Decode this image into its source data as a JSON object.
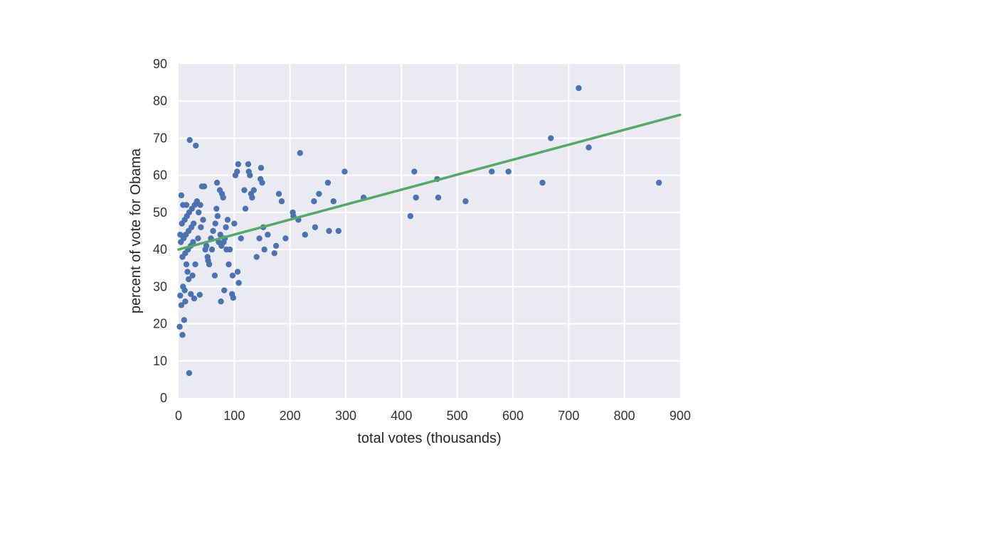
{
  "chart_data": {
    "type": "scatter",
    "title": "",
    "xlabel": "total votes (thousands)",
    "ylabel": "percent of vote for Obama",
    "xlim": [
      0,
      900
    ],
    "ylim": [
      0,
      90
    ],
    "xticks": [
      "0",
      "100",
      "200",
      "300",
      "400",
      "500",
      "600",
      "700",
      "800",
      "900"
    ],
    "yticks": [
      "0",
      "10",
      "20",
      "30",
      "40",
      "50",
      "60",
      "70",
      "80",
      "90"
    ],
    "grid": true,
    "colors": {
      "background": "#eaeaf2",
      "grid": "#ffffff",
      "points": "#4c72b0",
      "fit_line": "#55a868"
    },
    "series": [
      {
        "type": "scatter",
        "points": [
          [
            2,
            19.2
          ],
          [
            5,
            54.6
          ],
          [
            7,
            17
          ],
          [
            10,
            21
          ],
          [
            19,
            6.7
          ],
          [
            20,
            69.5
          ],
          [
            31,
            68
          ],
          [
            28,
            26.8
          ],
          [
            12,
            26
          ],
          [
            5,
            25
          ],
          [
            3,
            27.6
          ],
          [
            38,
            27.8
          ],
          [
            8,
            30
          ],
          [
            11,
            29
          ],
          [
            22,
            28
          ],
          [
            18,
            32
          ],
          [
            16,
            34
          ],
          [
            25,
            33
          ],
          [
            14,
            36
          ],
          [
            30,
            36
          ],
          [
            7,
            38
          ],
          [
            12,
            39
          ],
          [
            17,
            40
          ],
          [
            22,
            41
          ],
          [
            26,
            42
          ],
          [
            4,
            42
          ],
          [
            9,
            43
          ],
          [
            13,
            44
          ],
          [
            18,
            45
          ],
          [
            23,
            46
          ],
          [
            27,
            47
          ],
          [
            6,
            47
          ],
          [
            11,
            48
          ],
          [
            15,
            49
          ],
          [
            19,
            50
          ],
          [
            24,
            51
          ],
          [
            29,
            52
          ],
          [
            8,
            52
          ],
          [
            14,
            52
          ],
          [
            3,
            44
          ],
          [
            35,
            43
          ],
          [
            40,
            46
          ],
          [
            44,
            48
          ],
          [
            36,
            50
          ],
          [
            33,
            53
          ],
          [
            42,
            57
          ],
          [
            46,
            57
          ],
          [
            39,
            52
          ],
          [
            48,
            40
          ],
          [
            52,
            38
          ],
          [
            55,
            36
          ],
          [
            50,
            41
          ],
          [
            53,
            37
          ],
          [
            58,
            43
          ],
          [
            62,
            45
          ],
          [
            60,
            40
          ],
          [
            65,
            33
          ],
          [
            66,
            47
          ],
          [
            68,
            51
          ],
          [
            70,
            49
          ],
          [
            72,
            42
          ],
          [
            75,
            44
          ],
          [
            78,
            55
          ],
          [
            77,
            41
          ],
          [
            80,
            54
          ],
          [
            83,
            43
          ],
          [
            86,
            40
          ],
          [
            85,
            46
          ],
          [
            88,
            48
          ],
          [
            90,
            36
          ],
          [
            92,
            40
          ],
          [
            96,
            28
          ],
          [
            97,
            33
          ],
          [
            98,
            27
          ],
          [
            100,
            47
          ],
          [
            69,
            58
          ],
          [
            74,
            56
          ],
          [
            82,
            29
          ],
          [
            76,
            26
          ],
          [
            81,
            42
          ],
          [
            102,
            60
          ],
          [
            105,
            61
          ],
          [
            107,
            63
          ],
          [
            108,
            31
          ],
          [
            112,
            43
          ],
          [
            106,
            34
          ],
          [
            118,
            56
          ],
          [
            120,
            51
          ],
          [
            125,
            63
          ],
          [
            126,
            61
          ],
          [
            128,
            60
          ],
          [
            130,
            55
          ],
          [
            132,
            54
          ],
          [
            135,
            56
          ],
          [
            140,
            38
          ],
          [
            145,
            43
          ],
          [
            147,
            59
          ],
          [
            148,
            62
          ],
          [
            150,
            58
          ],
          [
            152,
            46
          ],
          [
            154,
            40
          ],
          [
            160,
            44
          ],
          [
            172,
            39
          ],
          [
            175,
            41
          ],
          [
            180,
            55
          ],
          [
            185,
            53
          ],
          [
            192,
            43
          ],
          [
            205,
            50
          ],
          [
            206,
            49
          ],
          [
            215,
            48
          ],
          [
            218,
            66
          ],
          [
            227,
            44
          ],
          [
            243,
            53
          ],
          [
            245,
            46
          ],
          [
            252,
            55
          ],
          [
            268,
            58
          ],
          [
            270,
            45
          ],
          [
            278,
            53
          ],
          [
            287,
            45
          ],
          [
            298,
            61
          ],
          [
            332,
            54
          ],
          [
            416,
            49
          ],
          [
            423,
            61
          ],
          [
            426,
            54
          ],
          [
            464,
            59
          ],
          [
            466,
            54
          ],
          [
            515,
            53
          ],
          [
            562,
            61
          ],
          [
            592,
            61
          ],
          [
            653,
            58
          ],
          [
            668,
            70
          ],
          [
            718,
            83.5
          ],
          [
            736,
            67.5
          ],
          [
            862,
            58
          ]
        ]
      },
      {
        "type": "line",
        "name": "",
        "x": [
          0,
          900
        ],
        "y": [
          40,
          76.3
        ]
      }
    ]
  }
}
